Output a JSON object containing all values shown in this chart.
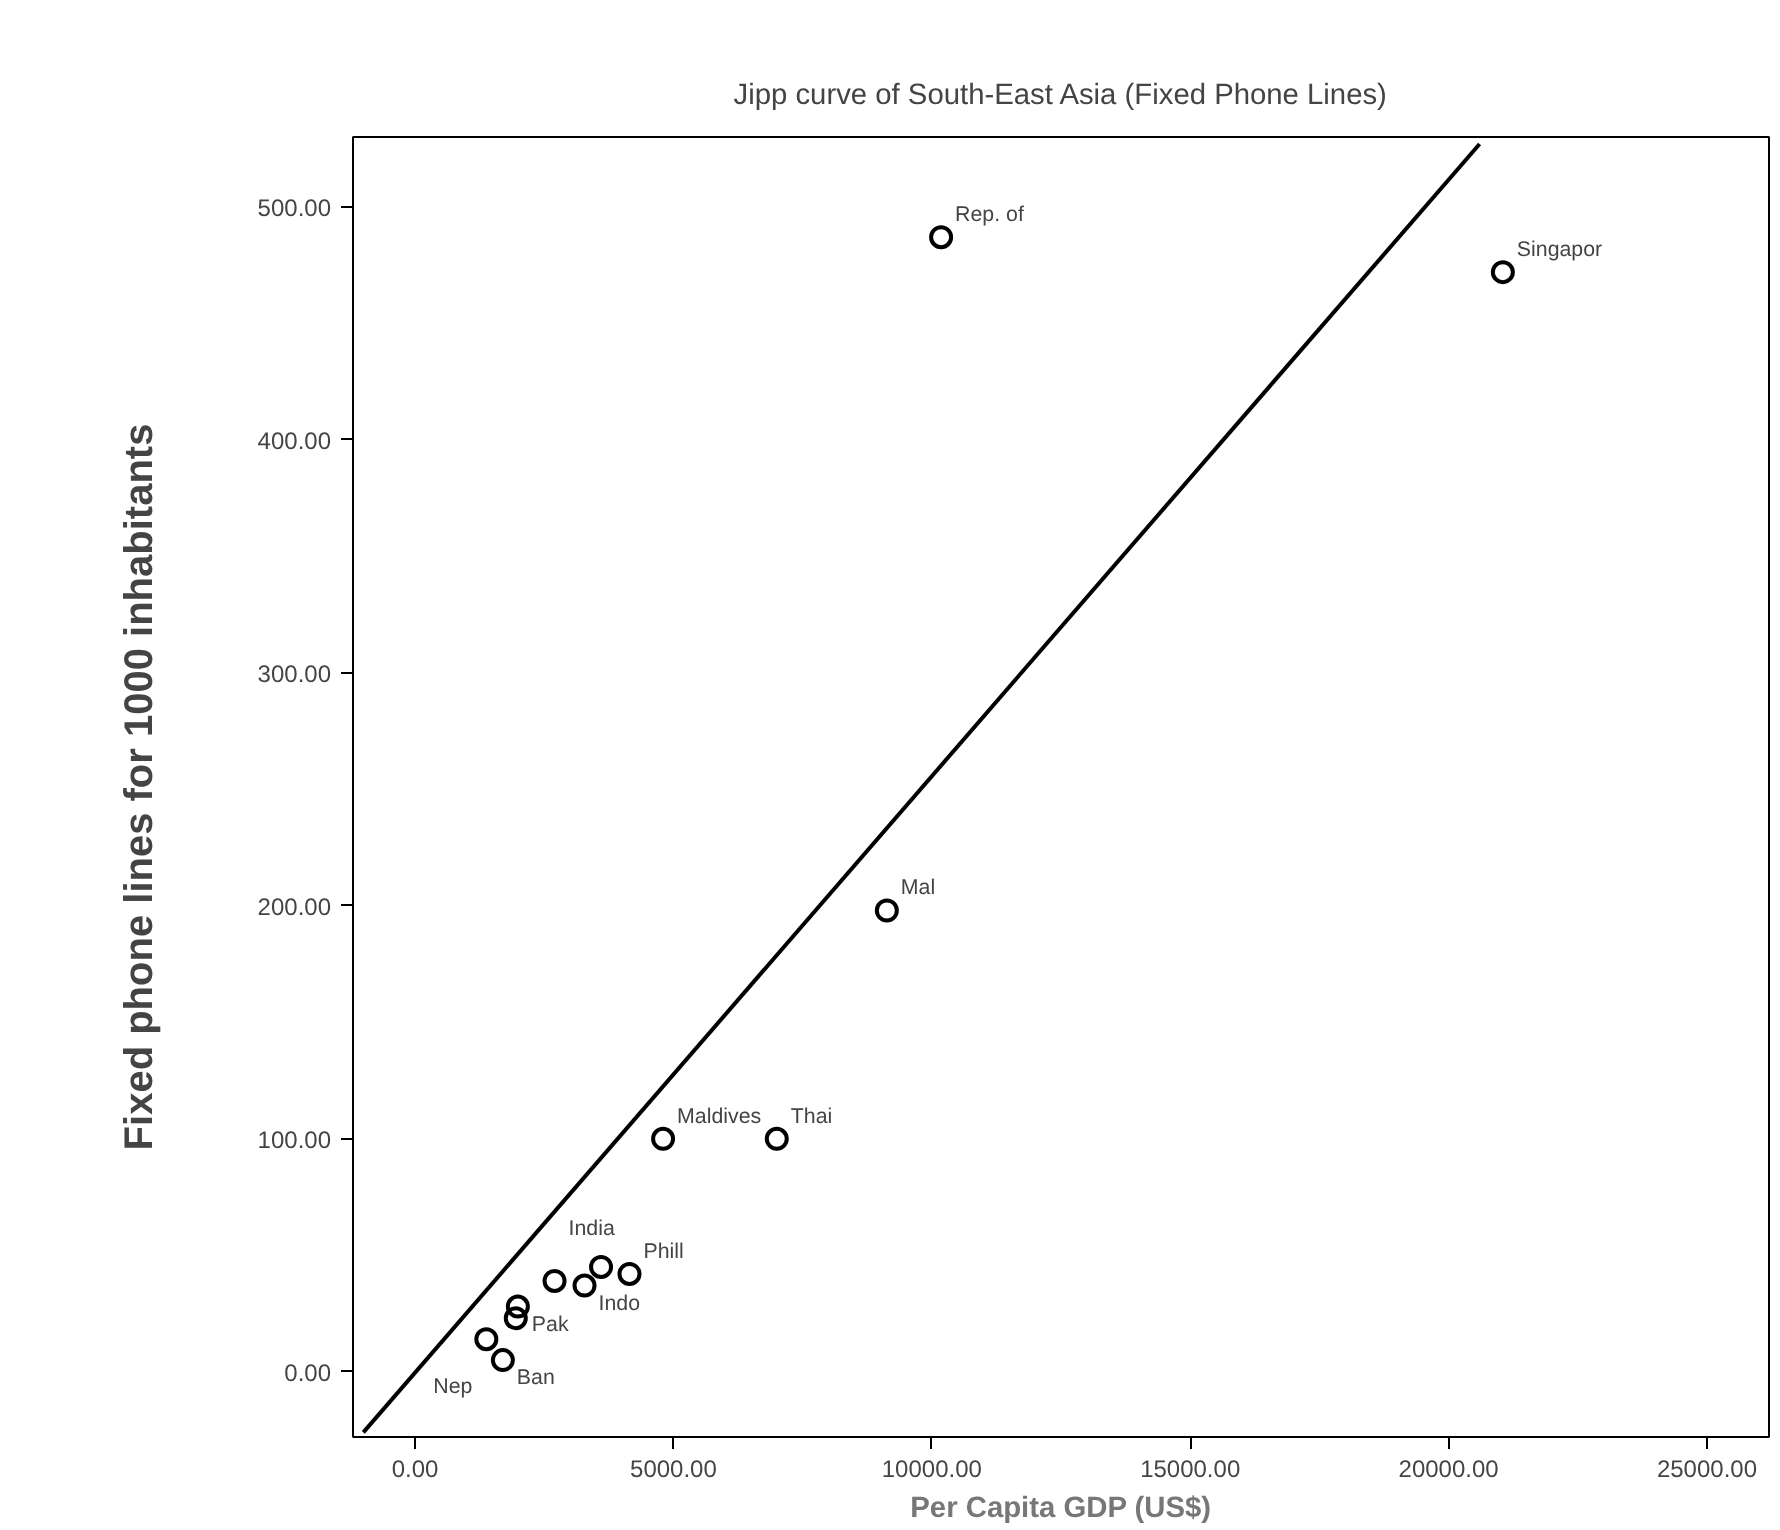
{
  "chart_data": {
    "type": "scatter",
    "title": "Jipp curve of South-East Asia (Fixed Phone Lines)",
    "xlabel": "Per Capita GDP (US$)",
    "ylabel": "Fixed phone lines for 1000 inhabitants",
    "xlim": [
      -1200,
      26200
    ],
    "ylim": [
      -28,
      530
    ],
    "xticks": [
      {
        "value": 0,
        "label": "0.00"
      },
      {
        "value": 5000,
        "label": "5000.00"
      },
      {
        "value": 10000,
        "label": "10000.00"
      },
      {
        "value": 15000,
        "label": "15000.00"
      },
      {
        "value": 20000,
        "label": "20000.00"
      },
      {
        "value": 25000,
        "label": "25000.00"
      }
    ],
    "yticks": [
      {
        "value": 0,
        "label": "0.00"
      },
      {
        "value": 100,
        "label": "100.00"
      },
      {
        "value": 200,
        "label": "200.00"
      },
      {
        "value": 300,
        "label": "300.00"
      },
      {
        "value": 400,
        "label": "400.00"
      },
      {
        "value": 500,
        "label": "500.00"
      }
    ],
    "grid": false,
    "marker": "circle",
    "series": [
      {
        "color": "#000000",
        "x": [
          10180,
          21050,
          9130,
          7000,
          4800,
          4150,
          3600,
          3280,
          2700,
          1990,
          1950,
          1380,
          1700
        ],
        "values": [
          487,
          472,
          198,
          100,
          100,
          42,
          45,
          37,
          39,
          28,
          23,
          14,
          5
        ]
      },
      {
        "type": "line",
        "color": "#000000",
        "marker": "none",
        "x": [
          -1000,
          20600
        ],
        "values": [
          -26,
          527
        ]
      }
    ],
    "annotations": [
      {
        "text": "Rep. of",
        "x": 10180,
        "y": 487
      },
      {
        "text": "Singapor",
        "x": 21050,
        "y": 472
      },
      {
        "text": "Mal",
        "x": 9130,
        "y": 198
      },
      {
        "text": "Thai",
        "x": 7000,
        "y": 100
      },
      {
        "text": "Maldives",
        "x": 4800,
        "y": 100
      },
      {
        "text": "Phill",
        "x": 4150,
        "y": 42
      },
      {
        "text": "Indo",
        "x": 3280,
        "y": 37
      },
      {
        "text": "Pak",
        "x": 1990,
        "y": 28
      },
      {
        "text": "India",
        "x": 2700,
        "y": 39
      },
      {
        "text": "Nep",
        "x": 1380,
        "y": 14
      },
      {
        "text": "Ban",
        "x": 1700,
        "y": 5
      }
    ]
  }
}
